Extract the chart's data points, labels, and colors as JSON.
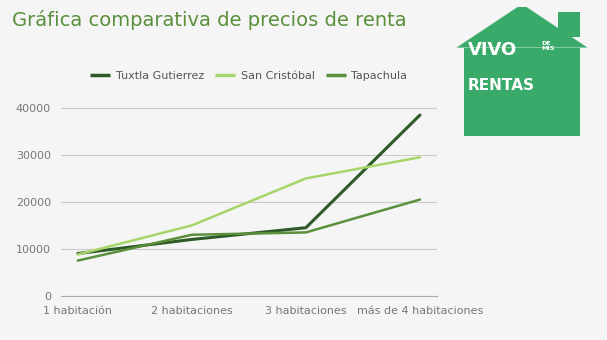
{
  "title": "Gráfica comparativa de precios de renta",
  "categories": [
    "1 habitación",
    "2 habitaciones",
    "3 habitaciones",
    "más de 4 habitaciones"
  ],
  "series": [
    {
      "name": "Tuxtla Gutierrez",
      "values": [
        9000,
        12000,
        14500,
        38500
      ],
      "color": "#2d5a27",
      "linewidth": 2.2
    },
    {
      "name": "San Cristóbal",
      "values": [
        8800,
        15000,
        25000,
        29500
      ],
      "color": "#a8d56a",
      "linewidth": 1.8
    },
    {
      "name": "Tapachula",
      "values": [
        7500,
        13000,
        13500,
        20500
      ],
      "color": "#5a8f3c",
      "linewidth": 1.8
    }
  ],
  "ylim": [
    0,
    42000
  ],
  "yticks": [
    0,
    10000,
    20000,
    30000,
    40000
  ],
  "background_color": "#f5f5f5",
  "plot_bg_color": "#f5f5f5",
  "grid_color": "#cccccc",
  "title_color": "#5a8f3c",
  "title_fontsize": 14,
  "tick_color": "#777777",
  "tick_fontsize": 8,
  "logo_green": "#3aaa6a",
  "logo_dark_green": "#2d8a55",
  "legend_fontsize": 8
}
